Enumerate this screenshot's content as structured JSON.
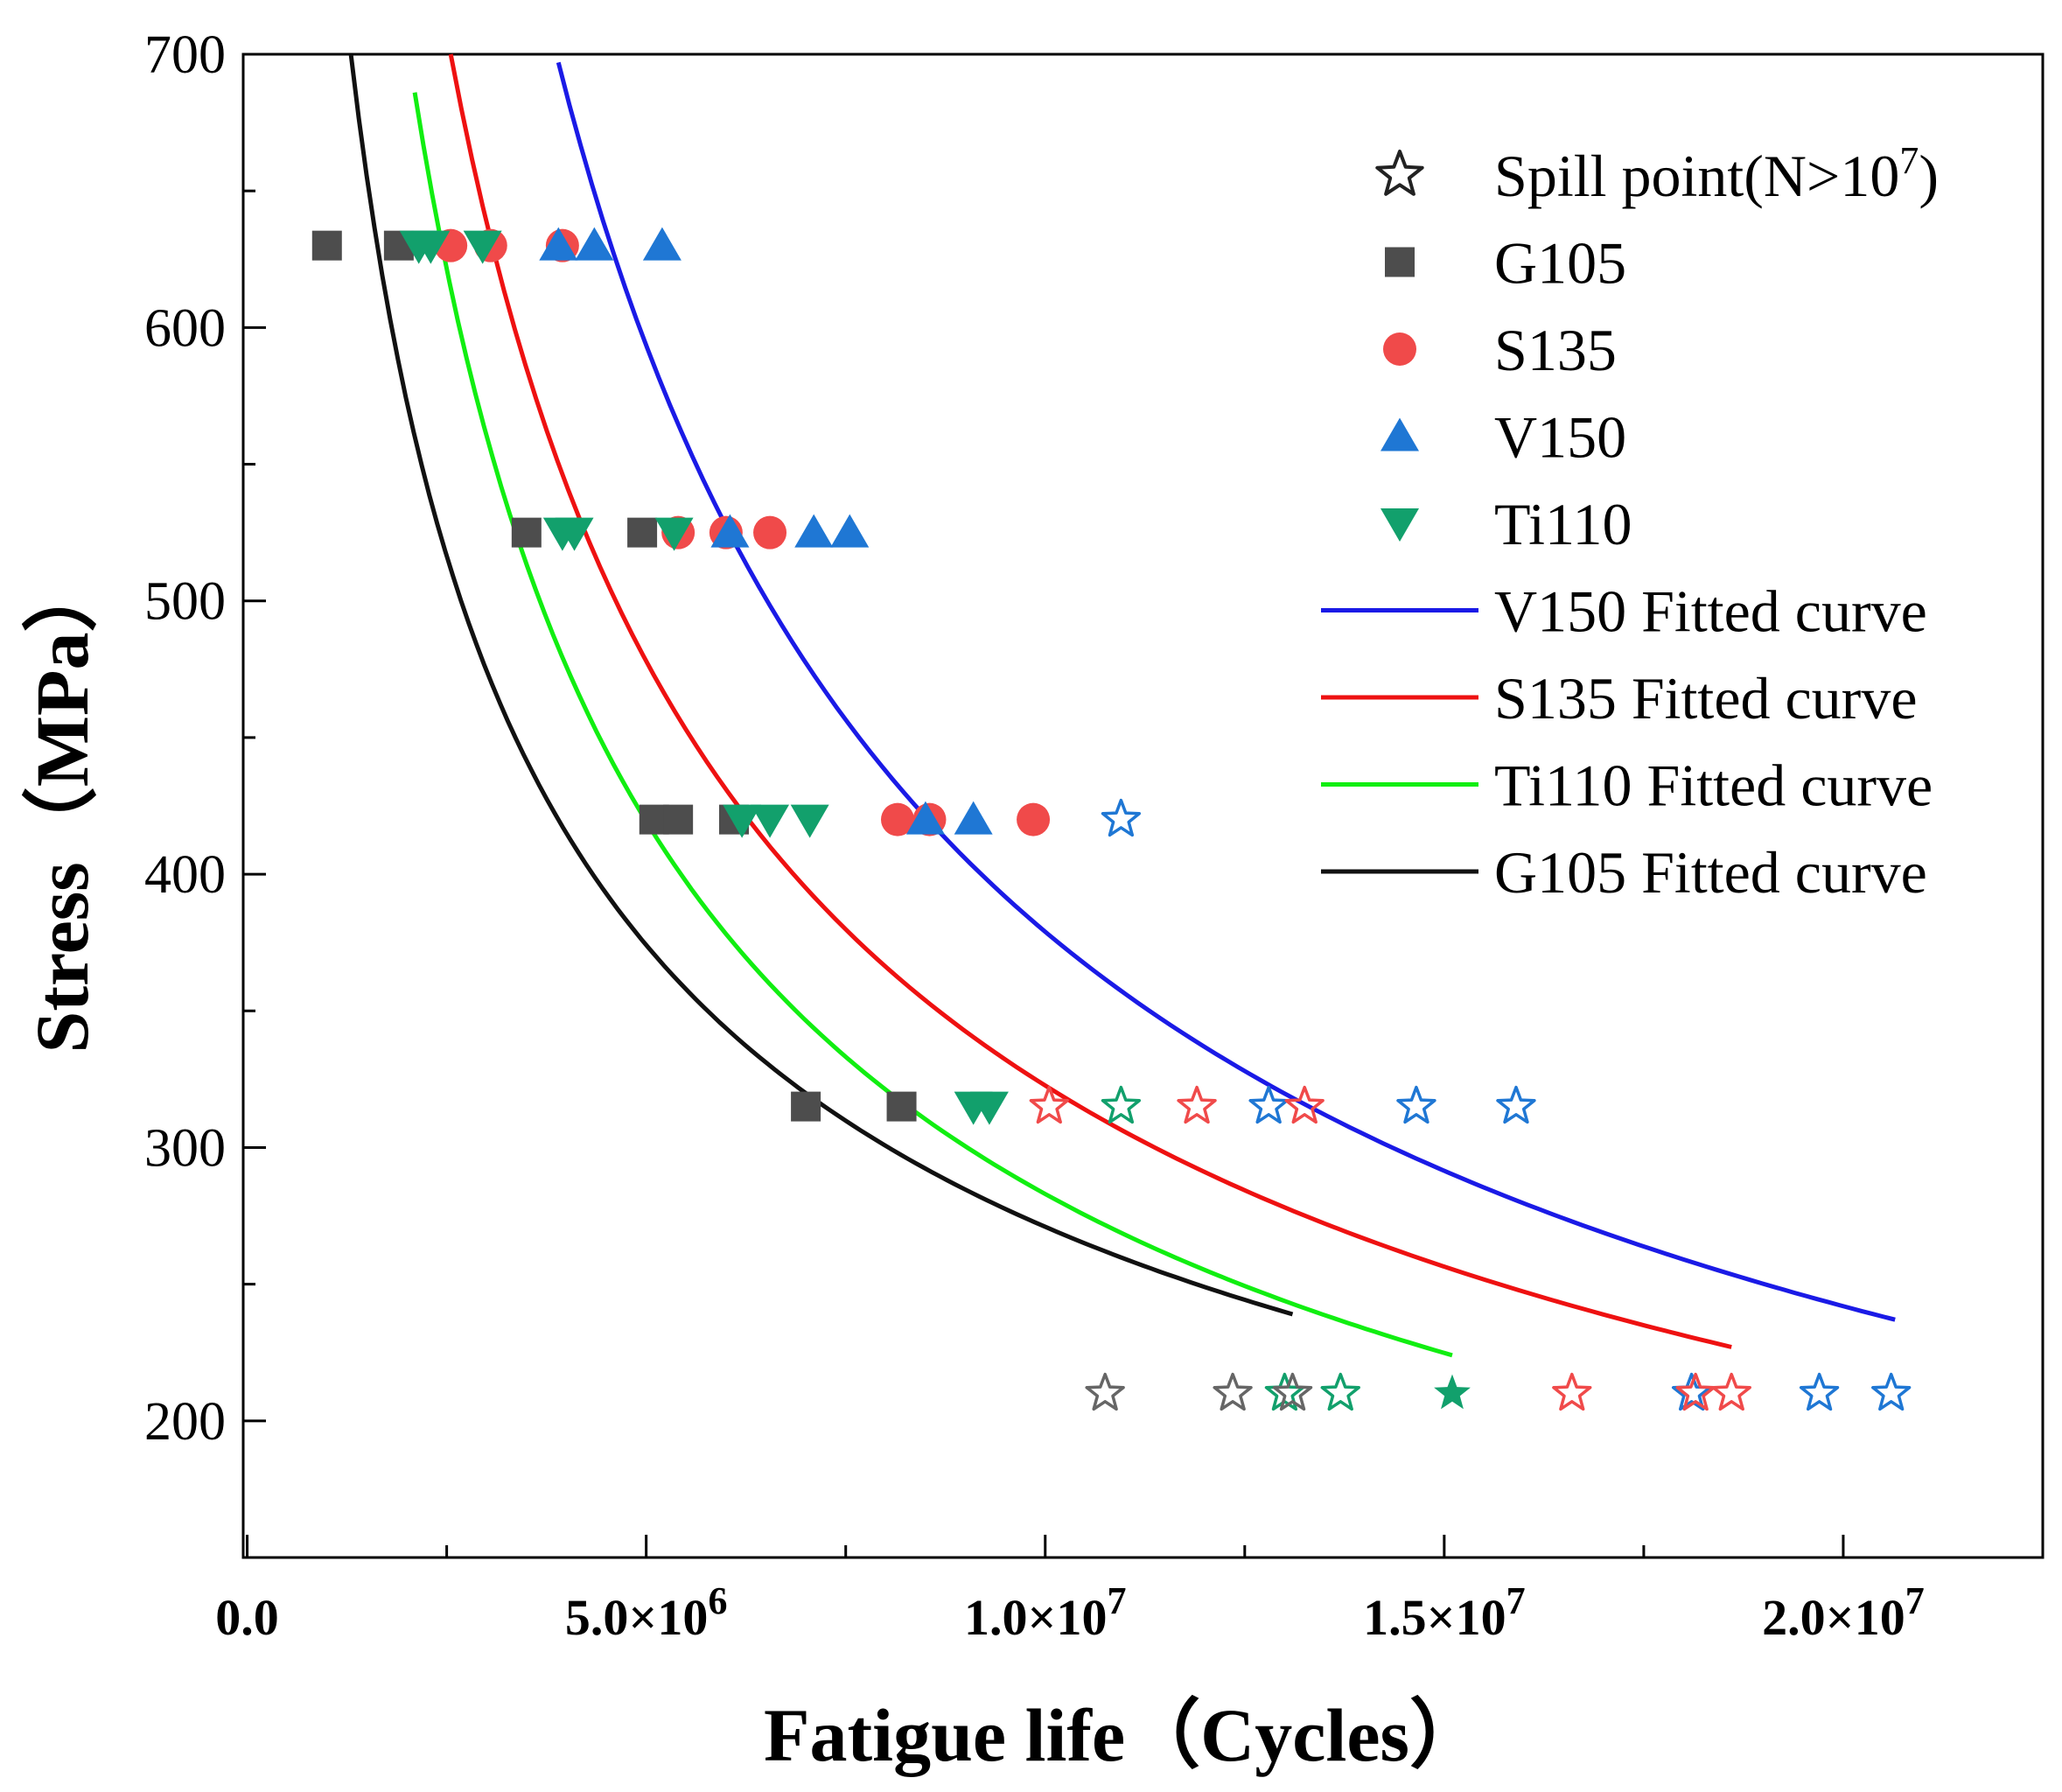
{
  "chart_data": {
    "type": "scatter",
    "title": "",
    "xlabel": "Fatigue life（Cycles）",
    "ylabel": "Stress（MPa）",
    "xlim": [
      -50000,
      22500000
    ],
    "ylim": [
      150,
      700
    ],
    "x_ticks": [
      {
        "value": 0,
        "label": "0.0"
      },
      {
        "value": 5000000,
        "mantissa": "5.0×10",
        "exp": "6"
      },
      {
        "value": 10000000,
        "mantissa": "1.0×10",
        "exp": "7"
      },
      {
        "value": 15000000,
        "mantissa": "1.5×10",
        "exp": "7"
      },
      {
        "value": 20000000,
        "mantissa": "2.0×10",
        "exp": "7"
      }
    ],
    "y_ticks": [
      {
        "value": 200,
        "label": "200"
      },
      {
        "value": 300,
        "label": "300"
      },
      {
        "value": 400,
        "label": "400"
      },
      {
        "value": 500,
        "label": "500"
      },
      {
        "value": 600,
        "label": "600"
      },
      {
        "value": 700,
        "label": "700"
      }
    ],
    "legend": {
      "position": "top-right",
      "entries": [
        {
          "key": "spill",
          "label": "Spill point(N>10",
          "label_sup": "7",
          "label_tail": ")",
          "kind": "star"
        },
        {
          "key": "G105",
          "label": "G105",
          "kind": "square"
        },
        {
          "key": "S135",
          "label": "S135",
          "kind": "circle"
        },
        {
          "key": "V150",
          "label": "V150",
          "kind": "triangle-up"
        },
        {
          "key": "Ti110",
          "label": "Ti110",
          "kind": "triangle-down"
        },
        {
          "key": "V150_fit",
          "label": "V150 Fitted curve",
          "kind": "line"
        },
        {
          "key": "S135_fit",
          "label": "S135 Fitted curve",
          "kind": "line"
        },
        {
          "key": "Ti110_fit",
          "label": "Ti110 Fitted curve",
          "kind": "line"
        },
        {
          "key": "G105_fit",
          "label": "G105 Fitted curve",
          "kind": "line"
        }
      ]
    },
    "series": [
      {
        "name": "G105",
        "marker": "square",
        "color": "#4d4d4d",
        "points": [
          [
            1000000,
            630
          ],
          [
            1900000,
            630
          ],
          [
            3500000,
            525
          ],
          [
            4950000,
            525
          ],
          [
            5100000,
            420
          ],
          [
            5400000,
            420
          ],
          [
            6100000,
            420
          ],
          [
            7000000,
            315
          ],
          [
            8200000,
            315
          ]
        ]
      },
      {
        "name": "S135",
        "marker": "circle",
        "color": "#f04a4a",
        "points": [
          [
            2550000,
            630
          ],
          [
            3050000,
            630
          ],
          [
            3950000,
            630
          ],
          [
            5400000,
            525
          ],
          [
            6000000,
            525
          ],
          [
            6550000,
            525
          ],
          [
            8150000,
            420
          ],
          [
            8550000,
            420
          ],
          [
            9850000,
            420
          ]
        ]
      },
      {
        "name": "V150",
        "marker": "triangle-up",
        "color": "#1f77d4",
        "points": [
          [
            3900000,
            630
          ],
          [
            4350000,
            630
          ],
          [
            5200000,
            630
          ],
          [
            6050000,
            525
          ],
          [
            7100000,
            525
          ],
          [
            7550000,
            525
          ],
          [
            8500000,
            420
          ],
          [
            9100000,
            420
          ]
        ]
      },
      {
        "name": "Ti110",
        "marker": "triangle-down",
        "color": "#12a06c",
        "points": [
          [
            2150000,
            630
          ],
          [
            2300000,
            630
          ],
          [
            2950000,
            630
          ],
          [
            3950000,
            525
          ],
          [
            4100000,
            525
          ],
          [
            5350000,
            525
          ],
          [
            6200000,
            420
          ],
          [
            6550000,
            420
          ],
          [
            7050000,
            420
          ],
          [
            9100000,
            315
          ],
          [
            9300000,
            315
          ]
        ]
      }
    ],
    "spill_points": [
      {
        "group": "V150",
        "color": "#1f77d4",
        "points": [
          [
            10950000,
            420
          ],
          [
            12800000,
            315
          ],
          [
            14650000,
            315
          ],
          [
            15900000,
            315
          ],
          [
            18100000,
            210
          ],
          [
            19700000,
            210
          ],
          [
            20600000,
            210
          ]
        ]
      },
      {
        "group": "S135",
        "color": "#f04a4a",
        "points": [
          [
            10050000,
            315
          ],
          [
            11900000,
            315
          ],
          [
            13250000,
            315
          ],
          [
            16600000,
            210
          ],
          [
            18150000,
            210
          ],
          [
            18600000,
            210
          ]
        ]
      },
      {
        "group": "Ti110",
        "color": "#12a06c",
        "points": [
          [
            10950000,
            315
          ],
          [
            13000000,
            210
          ],
          [
            13700000,
            210
          ]
        ]
      },
      {
        "group": "G105",
        "color": "#666666",
        "points": [
          [
            10750000,
            210
          ],
          [
            12350000,
            210
          ],
          [
            13100000,
            210
          ]
        ]
      }
    ],
    "spill_filled": [
      {
        "group": "Ti110",
        "color": "#12a06c",
        "points": [
          [
            15100000,
            210
          ]
        ]
      }
    ],
    "fitted_curves": [
      {
        "name": "V150 Fitted curve",
        "color": "#1a1ae6",
        "x_start": 3900000,
        "x_end": 20650000,
        "y_start": 697,
        "y_end": 237
      },
      {
        "name": "S135 Fitted curve",
        "color": "#ee1111",
        "x_start": 2550000,
        "x_end": 18600000,
        "y_start": 700,
        "y_end": 227
      },
      {
        "name": "Ti110 Fitted curve",
        "color": "#11ee11",
        "x_start": 2100000,
        "x_end": 15100000,
        "y_start": 686,
        "y_end": 224
      },
      {
        "name": "G105 Fitted curve",
        "color": "#111111",
        "x_start": 1300000,
        "x_end": 13100000,
        "y_start": 700,
        "y_end": 239
      }
    ]
  }
}
